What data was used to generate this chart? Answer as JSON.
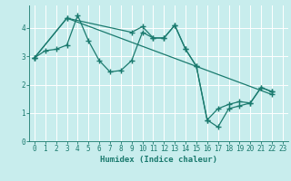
{
  "xlabel": "Humidex (Indice chaleur)",
  "bg_color": "#c8eded",
  "grid_color": "#ffffff",
  "line_color": "#1a7a6e",
  "xlim": [
    -0.5,
    23.5
  ],
  "ylim": [
    0,
    4.8
  ],
  "yticks": [
    0,
    1,
    2,
    3,
    4
  ],
  "xticks": [
    0,
    1,
    2,
    3,
    4,
    5,
    6,
    7,
    8,
    9,
    10,
    11,
    12,
    13,
    14,
    15,
    16,
    17,
    18,
    19,
    20,
    21,
    22,
    23
  ],
  "line1_x": [
    0,
    1,
    2,
    3,
    4,
    5,
    6,
    7,
    8,
    9,
    10,
    11,
    12,
    13,
    14,
    15,
    16,
    17,
    18,
    19,
    20,
    21,
    22
  ],
  "line1_y": [
    2.95,
    3.2,
    3.25,
    3.4,
    4.45,
    3.55,
    2.85,
    2.45,
    2.5,
    2.85,
    3.85,
    3.65,
    3.65,
    4.1,
    3.25,
    2.65,
    0.75,
    0.5,
    1.15,
    1.25,
    1.35,
    1.9,
    1.75
  ],
  "line2_x": [
    0,
    3,
    9,
    10,
    11,
    12,
    13,
    14,
    15,
    16,
    17,
    18,
    19,
    20,
    21,
    22
  ],
  "line2_y": [
    2.95,
    4.35,
    3.85,
    4.05,
    3.65,
    3.65,
    4.1,
    3.25,
    2.65,
    0.75,
    1.15,
    1.3,
    1.4,
    1.35,
    1.9,
    1.75
  ],
  "line3_x": [
    0,
    3,
    22
  ],
  "line3_y": [
    2.95,
    4.35,
    1.65
  ]
}
